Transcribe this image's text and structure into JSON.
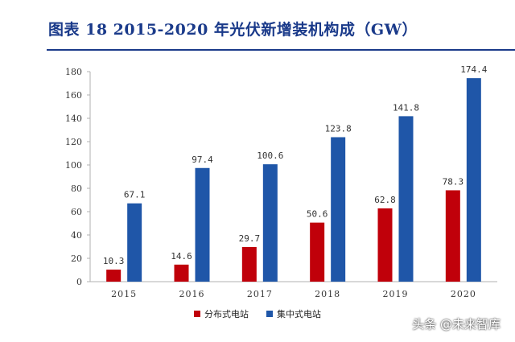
{
  "figure_title": "图表 18   2015-2020 年光伏新增装机构成（GW）",
  "watermark": "头条 @未来智库",
  "colors": {
    "distributed": "#c0000a",
    "centralized": "#1f56a8",
    "title": "#1a3a8a"
  },
  "chart_data": {
    "type": "bar",
    "categories": [
      "2015",
      "2016",
      "2017",
      "2018",
      "2019",
      "2020"
    ],
    "series": [
      {
        "name": "分布式电站",
        "values": [
          10.3,
          14.6,
          29.7,
          50.6,
          62.8,
          78.3
        ]
      },
      {
        "name": "集中式电站",
        "values": [
          67.1,
          97.4,
          100.6,
          123.8,
          141.8,
          174.4
        ]
      }
    ],
    "data_labels": [
      [
        "10.3",
        "14.6",
        "29.7",
        "50.6",
        "62.8",
        "78.3"
      ],
      [
        "67.1",
        "97.4",
        "100.6",
        "123.8",
        "141.8",
        "174.4"
      ]
    ],
    "yticks": [
      "0",
      "20",
      "40",
      "60",
      "80",
      "100",
      "120",
      "140",
      "160",
      "180"
    ],
    "ylim": [
      0,
      180
    ],
    "grid": false,
    "legend_position": "bottom-center"
  }
}
